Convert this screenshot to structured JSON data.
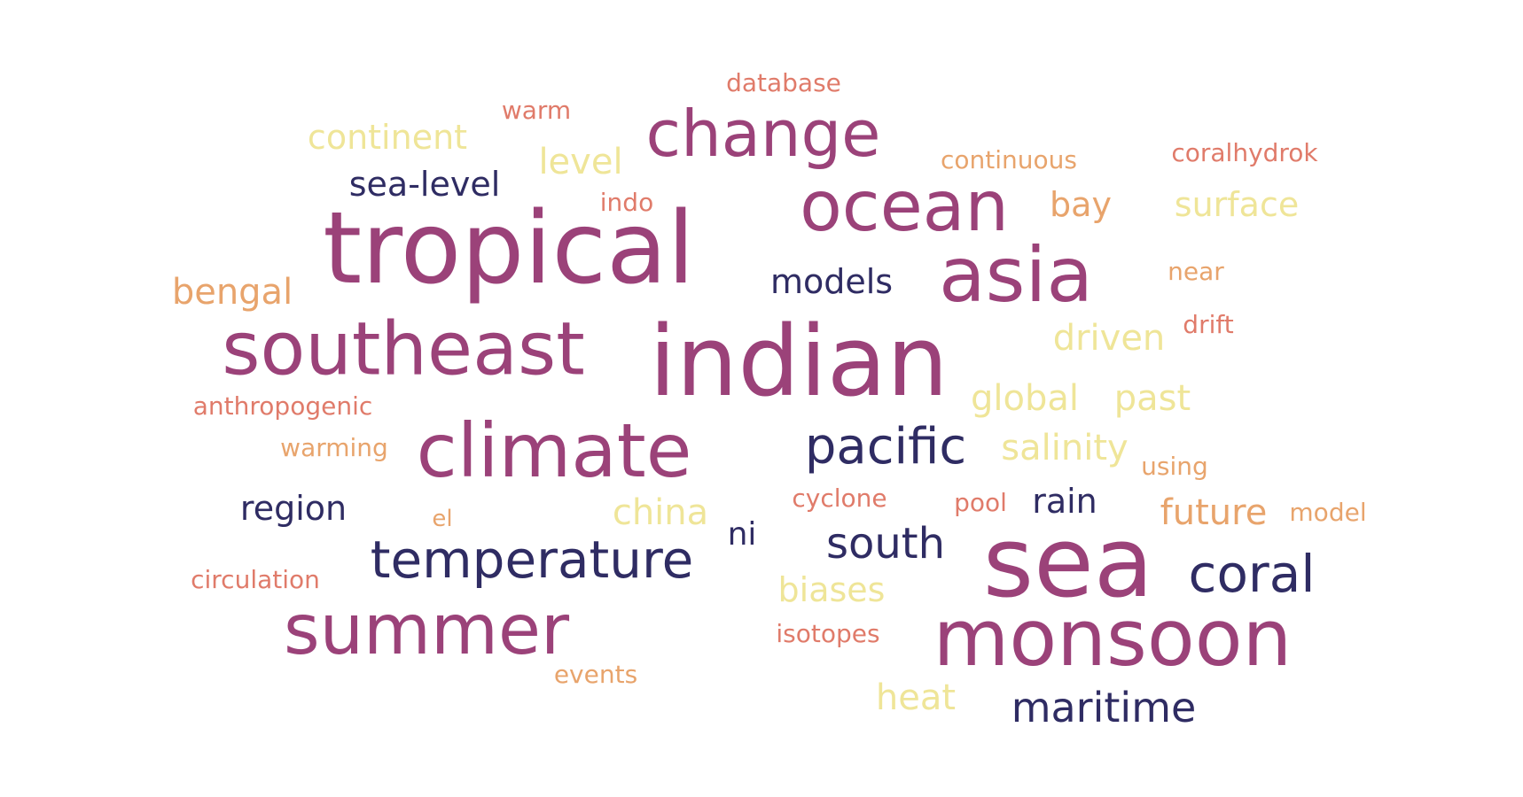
{
  "colors": {
    "plum": "#9b4279",
    "navy": "#2f2c63",
    "salmon": "#e07b6a",
    "peach": "#e8a46c",
    "cream": "#efe598"
  },
  "words": [
    {
      "id": "indian",
      "text": "indian",
      "color": "plum"
    },
    {
      "id": "tropical",
      "text": "tropical",
      "color": "plum"
    },
    {
      "id": "sea",
      "text": "sea",
      "color": "plum"
    },
    {
      "id": "monsoon",
      "text": "monsoon",
      "color": "plum"
    },
    {
      "id": "asia",
      "text": "asia",
      "color": "plum"
    },
    {
      "id": "southeast",
      "text": "southeast",
      "color": "plum"
    },
    {
      "id": "ocean",
      "text": "ocean",
      "color": "plum"
    },
    {
      "id": "climate",
      "text": "climate",
      "color": "plum"
    },
    {
      "id": "summer",
      "text": "summer",
      "color": "plum"
    },
    {
      "id": "change",
      "text": "change",
      "color": "plum"
    },
    {
      "id": "temperature",
      "text": "temperature",
      "color": "navy"
    },
    {
      "id": "coral",
      "text": "coral",
      "color": "navy"
    },
    {
      "id": "pacific",
      "text": "pacific",
      "color": "navy"
    },
    {
      "id": "maritime",
      "text": "maritime",
      "color": "navy"
    },
    {
      "id": "south",
      "text": "south",
      "color": "navy"
    },
    {
      "id": "sea-level",
      "text": "sea-level",
      "color": "navy"
    },
    {
      "id": "models",
      "text": "models",
      "color": "navy"
    },
    {
      "id": "region",
      "text": "region",
      "color": "navy"
    },
    {
      "id": "rain",
      "text": "rain",
      "color": "navy"
    },
    {
      "id": "ni",
      "text": "ni",
      "color": "navy"
    },
    {
      "id": "continent",
      "text": "continent",
      "color": "cream"
    },
    {
      "id": "level",
      "text": "level",
      "color": "cream"
    },
    {
      "id": "surface",
      "text": "surface",
      "color": "cream"
    },
    {
      "id": "driven",
      "text": "driven",
      "color": "cream"
    },
    {
      "id": "global",
      "text": "global",
      "color": "cream"
    },
    {
      "id": "past",
      "text": "past",
      "color": "cream"
    },
    {
      "id": "salinity",
      "text": "salinity",
      "color": "cream"
    },
    {
      "id": "china",
      "text": "china",
      "color": "cream"
    },
    {
      "id": "biases",
      "text": "biases",
      "color": "cream"
    },
    {
      "id": "heat",
      "text": "heat",
      "color": "cream"
    },
    {
      "id": "bengal",
      "text": "bengal",
      "color": "peach"
    },
    {
      "id": "bay",
      "text": "bay",
      "color": "peach"
    },
    {
      "id": "future",
      "text": "future",
      "color": "peach"
    },
    {
      "id": "warming",
      "text": "warming",
      "color": "peach"
    },
    {
      "id": "el",
      "text": "el",
      "color": "peach"
    },
    {
      "id": "events",
      "text": "events",
      "color": "peach"
    },
    {
      "id": "continuous",
      "text": "continuous",
      "color": "peach"
    },
    {
      "id": "near",
      "text": "near",
      "color": "peach"
    },
    {
      "id": "using",
      "text": "using",
      "color": "peach"
    },
    {
      "id": "model",
      "text": "model",
      "color": "peach"
    },
    {
      "id": "database",
      "text": "database",
      "color": "salmon"
    },
    {
      "id": "warm",
      "text": "warm",
      "color": "salmon"
    },
    {
      "id": "indo",
      "text": "indo",
      "color": "salmon"
    },
    {
      "id": "coralhydrok",
      "text": "coralhydrok",
      "color": "salmon"
    },
    {
      "id": "drift",
      "text": "drift",
      "color": "salmon"
    },
    {
      "id": "anthropogenic",
      "text": "anthropogenic",
      "color": "salmon"
    },
    {
      "id": "cyclone",
      "text": "cyclone",
      "color": "salmon"
    },
    {
      "id": "pool",
      "text": "pool",
      "color": "salmon"
    },
    {
      "id": "circulation",
      "text": "circulation",
      "color": "salmon"
    },
    {
      "id": "isotopes",
      "text": "isotopes",
      "color": "salmon"
    }
  ]
}
